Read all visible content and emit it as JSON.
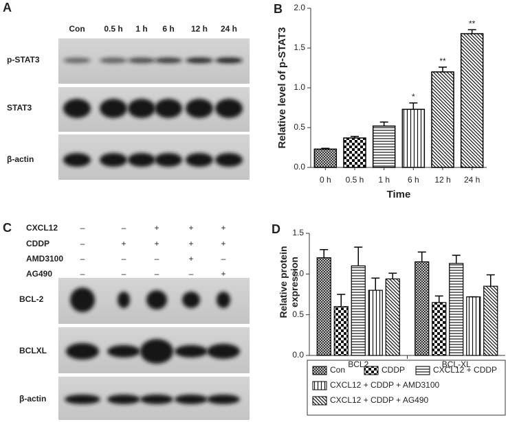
{
  "panels": {
    "a": "A",
    "b": "B",
    "c": "C",
    "d": "D"
  },
  "blot_a": {
    "lanes": [
      "Con",
      "0.5 h",
      "1 h",
      "6 h",
      "12 h",
      "24 h"
    ],
    "rows": [
      "p-STAT3",
      "STAT3",
      "β-actin"
    ]
  },
  "blot_c": {
    "conditions": [
      {
        "name": "CXCL12",
        "signs": [
          "–",
          "–",
          "+",
          "+",
          "+"
        ]
      },
      {
        "name": "CDDP",
        "signs": [
          "–",
          "+",
          "+",
          "+",
          "+"
        ]
      },
      {
        "name": "AMD3100",
        "signs": [
          "–",
          "–",
          "–",
          "+",
          "–"
        ]
      },
      {
        "name": "AG490",
        "signs": [
          "–",
          "–",
          "–",
          "–",
          "+"
        ]
      }
    ],
    "rows": [
      "BCL-2",
      "BCLXL",
      "β-actin"
    ]
  },
  "chart_data": [
    {
      "type": "bar",
      "xlabel": "Time",
      "ylabel": "Relative level of p-STAT3",
      "categories": [
        "0 h",
        "0.5 h",
        "1 h",
        "6 h",
        "12 h",
        "24 h"
      ],
      "values": [
        0.23,
        0.37,
        0.52,
        0.73,
        1.2,
        1.68
      ],
      "errors": [
        0.01,
        0.02,
        0.05,
        0.08,
        0.06,
        0.05
      ],
      "significance": [
        null,
        null,
        null,
        "*",
        "**",
        "**"
      ],
      "hatches": [
        "cross",
        "checker",
        "hlines",
        "vlines",
        "diag",
        "diag"
      ],
      "color": "#000000",
      "ylim": [
        0,
        2.0
      ],
      "yticks": [
        {
          "value": 0,
          "label": "0.0"
        },
        {
          "value": 0.5,
          "label": "0.5"
        },
        {
          "value": 1.0,
          "label": "1.0"
        },
        {
          "value": 1.5,
          "label": "1.5"
        },
        {
          "value": 2.0,
          "label": "2.0"
        }
      ]
    },
    {
      "type": "grouped_bar",
      "ylabel": "Relative protein expression",
      "categories": [
        "BCL2",
        "BCL-XL"
      ],
      "series": [
        {
          "name": "Con",
          "hatch": "cross",
          "color": "#000000",
          "values": [
            1.2,
            1.15
          ],
          "errors": [
            0.1,
            0.12
          ]
        },
        {
          "name": "CDDP",
          "hatch": "checker",
          "color": "#000000",
          "values": [
            0.6,
            0.65
          ],
          "errors": [
            0.15,
            0.08
          ]
        },
        {
          "name": "CXCL12 + CDDP",
          "hatch": "hlines",
          "color": "#000000",
          "values": [
            1.1,
            1.13
          ],
          "errors": [
            0.23,
            0.1
          ]
        },
        {
          "name": "CXCL12 + CDDP + AMD3100",
          "hatch": "vlines",
          "color": "#000000",
          "values": [
            0.8,
            0.72
          ],
          "errors": [
            0.15,
            0
          ]
        },
        {
          "name": "CXCL12 + CDDP + AG490",
          "hatch": "diag",
          "color": "#000000",
          "values": [
            0.94,
            0.85
          ],
          "errors": [
            0.07,
            0.14
          ]
        }
      ],
      "ylim": [
        0,
        1.5
      ],
      "yticks": [
        {
          "value": 0,
          "label": "0.0"
        },
        {
          "value": 0.5,
          "label": "0.5"
        },
        {
          "value": 1.0,
          "label": "1.0"
        },
        {
          "value": 1.5,
          "label": "1.5"
        }
      ]
    }
  ]
}
